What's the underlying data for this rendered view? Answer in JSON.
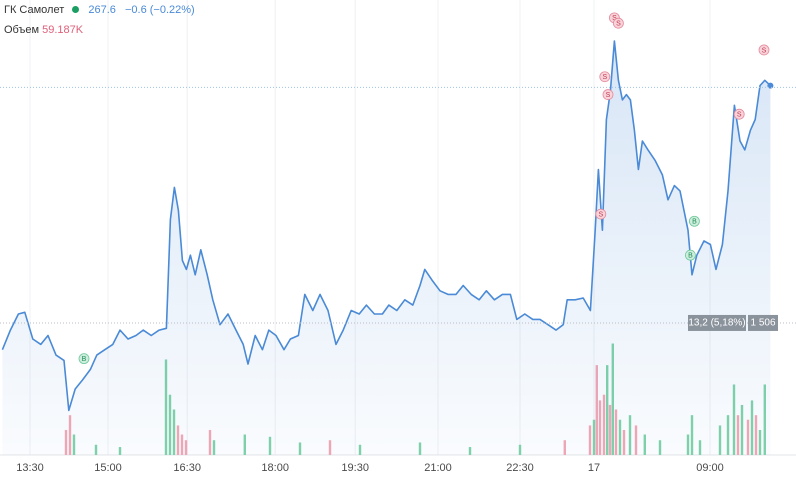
{
  "chart_data": {
    "type": "line",
    "header": {
      "name": "ГК Самолет",
      "price": "267.6",
      "change": "−0.6 (−0.22%)",
      "volume_label": "Объем",
      "volume": "59.187K"
    },
    "xlim": [
      0,
      97
    ],
    "ylim": [
      247,
      272.5
    ],
    "y2lim": [
      0,
      400
    ],
    "xticks": [
      {
        "value": 3.75,
        "label": "13:30"
      },
      {
        "value": 13.5,
        "label": "15:00"
      },
      {
        "value": 23.4,
        "label": "16:30"
      },
      {
        "value": 34.4,
        "label": "18:00"
      },
      {
        "value": 44.4,
        "label": "19:30"
      },
      {
        "value": 54.75,
        "label": "21:00"
      },
      {
        "value": 65,
        "label": "22:30"
      },
      {
        "value": 74.25,
        "label": "17"
      },
      {
        "value": 88.75,
        "label": "09:00"
      }
    ],
    "grid": true,
    "price_line": 267.6,
    "baseline": {
      "value": 254.4,
      "change_label": "13,2 (5,18%)",
      "count_label": "1 506"
    },
    "series": [
      {
        "name": "ГК Самолет",
        "color": "#4a8ad6",
        "x": [
          0.3,
          1.3,
          2.3,
          3.1,
          4.1,
          5.1,
          6.0,
          7.0,
          8.0,
          8.6,
          9.4,
          10.3,
          11.3,
          12.1,
          13.1,
          14.1,
          15.0,
          16.0,
          17.0,
          17.9,
          18.9,
          19.9,
          20.8,
          21.3,
          21.8,
          22.3,
          22.8,
          23.3,
          23.8,
          24.4,
          25.1,
          25.9,
          26.6,
          27.5,
          28.5,
          29.5,
          30.4,
          31.0,
          31.9,
          32.8,
          33.6,
          34.5,
          35.5,
          36.3,
          37.3,
          38.1,
          39.1,
          40.0,
          41.0,
          42.0,
          42.9,
          43.9,
          44.9,
          45.8,
          46.8,
          47.8,
          48.6,
          49.6,
          50.6,
          51.6,
          52.5,
          53.1,
          54.0,
          55.0,
          56.0,
          57.0,
          57.9,
          58.9,
          59.9,
          60.8,
          61.8,
          62.8,
          63.8,
          64.6,
          65.6,
          66.6,
          67.5,
          68.5,
          69.5,
          70.4,
          70.9,
          71.9,
          72.9,
          73.8,
          74.4,
          74.8,
          75.3,
          75.8,
          76.3,
          76.8,
          77.3,
          77.8,
          78.3,
          78.8,
          79.3,
          79.8,
          80.3,
          81.0,
          81.9,
          82.8,
          83.5,
          84.3,
          85.0,
          86.0,
          86.5,
          87.1,
          88.0,
          88.8,
          89.5,
          90.3,
          91.0,
          91.8,
          92.5,
          93.1,
          93.8,
          94.4,
          95.0,
          95.6,
          96.3
        ],
        "values": [
          252.9,
          254.0,
          254.9,
          255.0,
          253.5,
          253.2,
          253.7,
          252.6,
          252.3,
          249.5,
          250.7,
          251.2,
          251.8,
          252.6,
          252.9,
          253.2,
          254.0,
          253.5,
          253.7,
          254.0,
          253.7,
          254.0,
          254.1,
          260.2,
          262.0,
          260.7,
          257.9,
          257.4,
          258.2,
          257.1,
          258.5,
          257.1,
          255.7,
          254.3,
          254.9,
          254.0,
          253.2,
          252.1,
          253.7,
          252.9,
          254.0,
          253.7,
          252.9,
          253.5,
          253.7,
          256.0,
          255.1,
          256.0,
          255.1,
          253.2,
          254.0,
          255.1,
          254.9,
          255.4,
          254.9,
          254.9,
          255.4,
          255.1,
          255.7,
          255.4,
          256.5,
          257.4,
          256.8,
          256.2,
          256.0,
          256.0,
          256.5,
          256.0,
          255.7,
          256.2,
          255.7,
          256.0,
          256.0,
          254.6,
          254.9,
          254.6,
          254.6,
          254.3,
          254.0,
          254.3,
          255.7,
          255.7,
          255.8,
          255.1,
          259.6,
          263.0,
          259.6,
          265.8,
          267.4,
          270.2,
          268.0,
          266.9,
          267.2,
          266.9,
          265.2,
          263.0,
          264.6,
          264.1,
          263.5,
          262.7,
          261.3,
          262.1,
          261.8,
          259.6,
          257.1,
          258.2,
          259.0,
          258.8,
          257.4,
          258.8,
          261.8,
          266.6,
          264.6,
          264.1,
          265.2,
          265.8,
          267.7,
          268.0,
          267.7
        ]
      },
      {
        "name": "Объем",
        "type": "bar",
        "axis": "y2",
        "x": [
          8.25,
          8.75,
          9.25,
          12,
          15,
          20.75,
          21.25,
          21.75,
          22.25,
          22.75,
          23.25,
          26.25,
          26.75,
          30.6,
          33.75,
          37.5,
          41.25,
          45,
          52.5,
          58.75,
          65,
          70.6,
          73.75,
          74.25,
          74.6,
          75,
          75.5,
          75.9,
          76.25,
          76.6,
          77,
          77.5,
          78,
          78.75,
          79.5,
          80.6,
          82.5,
          86,
          86.5,
          87.5,
          90,
          91,
          91.75,
          92.25,
          92.75,
          93.5,
          94,
          94.5,
          95,
          95.6
        ],
        "values": [
          22,
          35,
          18,
          9,
          7,
          84,
          53,
          40,
          26,
          18,
          13,
          22,
          13,
          18,
          16,
          11,
          13,
          9,
          11,
          7,
          9,
          13,
          26,
          31,
          79,
          48,
          53,
          79,
          44,
          98,
          40,
          31,
          22,
          35,
          26,
          18,
          13,
          18,
          35,
          13,
          26,
          35,
          62,
          35,
          44,
          31,
          48,
          35,
          22,
          62
        ],
        "colors": [
          "#f3a7b5",
          "#f3a7b5",
          "#7fd3a8",
          "#7fd3a8",
          "#7fd3a8",
          "#7fd3a8",
          "#7fd3a8",
          "#7fd3a8",
          "#f3a7b5",
          "#f3a7b5",
          "#f3a7b5",
          "#f3a7b5",
          "#7fd3a8",
          "#7fd3a8",
          "#7fd3a8",
          "#7fd3a8",
          "#f3a7b5",
          "#7fd3a8",
          "#7fd3a8",
          "#7fd3a8",
          "#7fd3a8",
          "#f3a7b5",
          "#f3a7b5",
          "#7fd3a8",
          "#f3a7b5",
          "#f3a7b5",
          "#f3a7b5",
          "#7fd3a8",
          "#f3a7b5",
          "#7fd3a8",
          "#f3a7b5",
          "#7fd3a8",
          "#f3a7b5",
          "#7fd3a8",
          "#f3a7b5",
          "#7fd3a8",
          "#7fd3a8",
          "#7fd3a8",
          "#7fd3a8",
          "#7fd3a8",
          "#7fd3a8",
          "#7fd3a8",
          "#7fd3a8",
          "#f3a7b5",
          "#7fd3a8",
          "#f3a7b5",
          "#7fd3a8",
          "#f3a7b5",
          "#7fd3a8",
          "#7fd3a8"
        ]
      }
    ],
    "signals": [
      {
        "x": 76.8,
        "y": 271.5,
        "label": "S"
      },
      {
        "x": 77.3,
        "y": 271.2,
        "label": "S"
      },
      {
        "x": 75.6,
        "y": 268.2,
        "label": "S"
      },
      {
        "x": 76.0,
        "y": 267.2,
        "label": "S"
      },
      {
        "x": 75.1,
        "y": 260.5,
        "label": "S"
      },
      {
        "x": 92.4,
        "y": 266.1,
        "label": "S"
      },
      {
        "x": 95.5,
        "y": 269.7,
        "label": "S"
      },
      {
        "x": 10.5,
        "y": 252.4,
        "label": "B"
      },
      {
        "x": 86.8,
        "y": 260.1,
        "label": "B"
      },
      {
        "x": 86.3,
        "y": 258.2,
        "label": "B"
      }
    ]
  }
}
